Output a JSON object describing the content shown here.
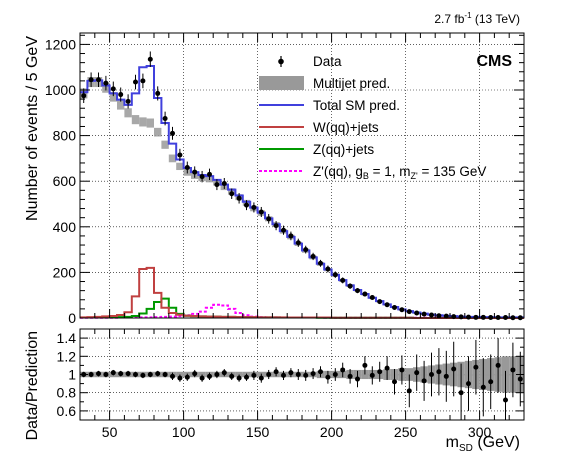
{
  "header": {
    "lumi_main": "2.7 fb",
    "lumi_sup": "-1",
    "lumi_tail": " (13 TeV)",
    "experiment": "CMS"
  },
  "legend": {
    "data": "Data",
    "multijet": "Multijet pred.",
    "total_sm": "Total SM pred.",
    "wjets": "W(qq)+jets",
    "zjets": "Z(qq)+jets",
    "zprime_a": "Z'(qq), g",
    "zprime_a_sub": "B",
    "zprime_b": " = 1, m",
    "zprime_b_sub": "Z'",
    "zprime_c": " = 135 GeV"
  },
  "chart_data": [
    {
      "type": "line",
      "panel": "main",
      "ylabel": "Number of events / 5 GeV",
      "xlim": [
        30,
        330
      ],
      "ylim": [
        0,
        1250
      ],
      "yticks": [
        "0",
        "200",
        "400",
        "600",
        "800",
        "1000",
        "1200"
      ],
      "xticks": [
        "50",
        "100",
        "150",
        "200",
        "250",
        "300"
      ],
      "bin_width": 5,
      "colors": {
        "data": "#000000",
        "multijet": "#999999",
        "total_sm": "#4040dd",
        "wjets": "#c04040",
        "zjets": "#009900",
        "zprime": "#ff00ff"
      },
      "x": [
        32.5,
        37.5,
        42.5,
        47.5,
        52.5,
        57.5,
        62.5,
        67.5,
        72.5,
        77.5,
        82.5,
        87.5,
        92.5,
        97.5,
        102.5,
        107.5,
        112.5,
        117.5,
        122.5,
        127.5,
        132.5,
        137.5,
        142.5,
        147.5,
        152.5,
        157.5,
        162.5,
        167.5,
        172.5,
        177.5,
        182.5,
        187.5,
        192.5,
        197.5,
        202.5,
        207.5,
        212.5,
        217.5,
        222.5,
        227.5,
        232.5,
        237.5,
        242.5,
        247.5,
        252.5,
        257.5,
        262.5,
        267.5,
        272.5,
        277.5,
        282.5,
        287.5,
        292.5,
        297.5,
        302.5,
        307.5,
        312.5,
        317.5,
        322.5,
        327.5
      ],
      "series": [
        {
          "name": "Data",
          "values": [
            975,
            1045,
            1045,
            1030,
            1005,
            980,
            950,
            1035,
            1040,
            1135,
            985,
            875,
            810,
            715,
            660,
            640,
            620,
            630,
            585,
            590,
            545,
            525,
            495,
            485,
            465,
            435,
            405,
            385,
            360,
            330,
            300,
            270,
            240,
            215,
            190,
            165,
            140,
            120,
            105,
            90,
            72,
            58,
            46,
            36,
            28,
            22,
            17,
            13,
            10,
            8,
            6,
            5,
            4,
            3,
            3,
            2,
            2,
            2,
            1,
            1
          ],
          "errors": [
            32,
            32,
            32,
            32,
            32,
            31,
            31,
            32,
            32,
            34,
            31,
            30,
            28,
            27,
            26,
            25,
            25,
            25,
            24,
            24,
            23,
            23,
            22,
            22,
            22,
            21,
            20,
            20,
            19,
            18,
            17,
            16,
            15,
            15,
            14,
            13,
            12,
            11,
            10,
            9,
            8,
            8,
            7,
            6,
            5,
            5,
            4,
            4,
            3,
            3,
            2,
            2,
            2,
            2,
            2,
            1,
            1,
            1,
            1,
            1
          ]
        },
        {
          "name": "Multijet pred.",
          "values": [
            985,
            1035,
            1035,
            1010,
            970,
            935,
            900,
            870,
            860,
            855,
            815,
            760,
            700,
            665,
            640,
            625,
            615,
            610,
            595,
            575,
            555,
            530,
            505,
            480,
            460,
            435,
            410,
            380,
            355,
            325,
            295,
            265,
            237,
            212,
            188,
            165,
            142,
            122,
            104,
            88,
            73,
            59,
            47,
            37,
            29,
            23,
            18,
            14,
            11,
            9,
            7,
            5,
            4,
            4,
            3,
            3,
            2,
            2,
            2,
            2
          ],
          "uncertainty": [
            22,
            22,
            22,
            22,
            21,
            21,
            20,
            20,
            20,
            20,
            19,
            18,
            17,
            16,
            16,
            15,
            15,
            15,
            14,
            14,
            14,
            13,
            13,
            12,
            12,
            11,
            11,
            10,
            10,
            9,
            9,
            8,
            8,
            7,
            7,
            6,
            6,
            5,
            5,
            4,
            4,
            3,
            3,
            3,
            2,
            2,
            2,
            2,
            1,
            1,
            1,
            1,
            1,
            1,
            1,
            1,
            1,
            1,
            1,
            1
          ]
        },
        {
          "name": "Total SM pred.",
          "values": [
            990,
            1040,
            1042,
            1020,
            985,
            958,
            935,
            985,
            1100,
            1105,
            965,
            855,
            765,
            695,
            658,
            640,
            627,
            622,
            606,
            585,
            563,
            537,
            510,
            484,
            462,
            437,
            411,
            381,
            356,
            326,
            296,
            266,
            238,
            213,
            189,
            166,
            143,
            123,
            105,
            89,
            74,
            60,
            48,
            38,
            30,
            24,
            19,
            15,
            12,
            10,
            8,
            6,
            5,
            5,
            4,
            4,
            3,
            3,
            3,
            3
          ]
        },
        {
          "name": "W(qq)+jets",
          "values": [
            3,
            4,
            5,
            7,
            9,
            13,
            25,
            95,
            215,
            220,
            110,
            45,
            22,
            14,
            10,
            8,
            7,
            6,
            6,
            5,
            5,
            4,
            4,
            4,
            3,
            3,
            3,
            3,
            2,
            2,
            2,
            2,
            2,
            2,
            1,
            1,
            1,
            1,
            1,
            1,
            1,
            1,
            1,
            1,
            1,
            0,
            0,
            0,
            0,
            0,
            0,
            0,
            0,
            0,
            0,
            0,
            0,
            0,
            0,
            0
          ]
        },
        {
          "name": "Z(qq)+jets",
          "values": [
            2,
            2,
            2,
            3,
            3,
            4,
            5,
            9,
            20,
            40,
            70,
            85,
            45,
            18,
            10,
            8,
            7,
            6,
            6,
            5,
            5,
            4,
            4,
            3,
            3,
            3,
            3,
            2,
            2,
            2,
            2,
            2,
            1,
            1,
            1,
            1,
            1,
            1,
            1,
            1,
            1,
            1,
            1,
            1,
            1,
            0,
            0,
            0,
            0,
            0,
            0,
            0,
            0,
            0,
            0,
            0,
            0,
            0,
            0,
            0
          ]
        },
        {
          "name": "Z'(qq), gB = 1, mZ' = 135 GeV",
          "values": [
            1,
            1,
            1,
            1,
            1,
            2,
            2,
            2,
            3,
            3,
            4,
            5,
            6,
            8,
            12,
            18,
            28,
            45,
            58,
            55,
            40,
            22,
            12,
            6,
            4,
            3,
            3,
            2,
            2,
            2,
            2,
            2,
            2,
            1,
            1,
            1,
            1,
            1,
            1,
            1,
            1,
            1,
            1,
            1,
            1,
            1,
            1,
            1,
            1,
            1,
            1,
            1,
            1,
            1,
            1,
            1,
            1,
            1,
            1,
            1
          ]
        }
      ]
    },
    {
      "type": "scatter",
      "panel": "ratio",
      "ylabel": "Data/Prediction",
      "xlabel_main": "m",
      "xlabel_sub": "SD",
      "xlabel_tail": " (GeV)",
      "xlim": [
        30,
        330
      ],
      "ylim": [
        0.5,
        1.5
      ],
      "yticks": [
        "0.6",
        "0.8",
        "1",
        "1.2",
        "1.4"
      ],
      "xticks": [
        "50",
        "100",
        "150",
        "200",
        "250",
        "300"
      ],
      "x": [
        32.5,
        37.5,
        42.5,
        47.5,
        52.5,
        57.5,
        62.5,
        67.5,
        72.5,
        77.5,
        82.5,
        87.5,
        92.5,
        97.5,
        102.5,
        107.5,
        112.5,
        117.5,
        122.5,
        127.5,
        132.5,
        137.5,
        142.5,
        147.5,
        152.5,
        157.5,
        162.5,
        167.5,
        172.5,
        177.5,
        182.5,
        187.5,
        192.5,
        197.5,
        202.5,
        207.5,
        212.5,
        217.5,
        222.5,
        227.5,
        232.5,
        237.5,
        242.5,
        247.5,
        252.5,
        257.5,
        262.5,
        267.5,
        272.5,
        277.5,
        282.5,
        287.5,
        292.5,
        297.5,
        302.5,
        307.5,
        312.5,
        317.5,
        322.5,
        327.5
      ],
      "values": [
        1.0,
        1.0,
        1.01,
        1.0,
        1.02,
        1.01,
        1.01,
        1.0,
        0.99,
        1.0,
        1.01,
        1.0,
        0.98,
        0.96,
        0.97,
        1.01,
        0.96,
        0.98,
        1.0,
        1.02,
        0.98,
        0.96,
        0.97,
        0.99,
        0.96,
        1.0,
        1.03,
        0.99,
        1.02,
        1.0,
        0.99,
        1.01,
        1.03,
        0.97,
        1.0,
        1.05,
        0.98,
        0.95,
        1.1,
        0.99,
        1.03,
        1.07,
        0.92,
        1.05,
        0.82,
        1.02,
        0.93,
        1.0,
        1.03,
        0.98,
        1.06,
        0.8,
        0.9,
        1.08,
        0.86,
        0.92,
        1.1,
        0.72,
        1.05,
        0.95
      ],
      "errors": [
        0.03,
        0.03,
        0.03,
        0.03,
        0.03,
        0.03,
        0.03,
        0.03,
        0.03,
        0.03,
        0.03,
        0.03,
        0.04,
        0.04,
        0.04,
        0.04,
        0.04,
        0.04,
        0.04,
        0.04,
        0.04,
        0.04,
        0.04,
        0.05,
        0.05,
        0.05,
        0.05,
        0.05,
        0.05,
        0.06,
        0.06,
        0.06,
        0.06,
        0.07,
        0.07,
        0.08,
        0.08,
        0.09,
        0.1,
        0.1,
        0.11,
        0.13,
        0.14,
        0.16,
        0.18,
        0.2,
        0.22,
        0.24,
        0.26,
        0.28,
        0.3,
        0.32,
        0.3,
        0.3,
        0.32,
        0.3,
        0.3,
        0.32,
        0.3,
        0.3
      ],
      "band": [
        0.03,
        0.03,
        0.03,
        0.03,
        0.03,
        0.03,
        0.03,
        0.03,
        0.03,
        0.03,
        0.03,
        0.03,
        0.03,
        0.03,
        0.03,
        0.03,
        0.03,
        0.03,
        0.03,
        0.03,
        0.03,
        0.03,
        0.03,
        0.03,
        0.03,
        0.03,
        0.03,
        0.03,
        0.03,
        0.03,
        0.03,
        0.03,
        0.04,
        0.04,
        0.04,
        0.04,
        0.05,
        0.05,
        0.05,
        0.05,
        0.05,
        0.06,
        0.06,
        0.07,
        0.07,
        0.08,
        0.09,
        0.1,
        0.11,
        0.12,
        0.13,
        0.14,
        0.15,
        0.16,
        0.17,
        0.18,
        0.19,
        0.2,
        0.2,
        0.2
      ]
    }
  ]
}
